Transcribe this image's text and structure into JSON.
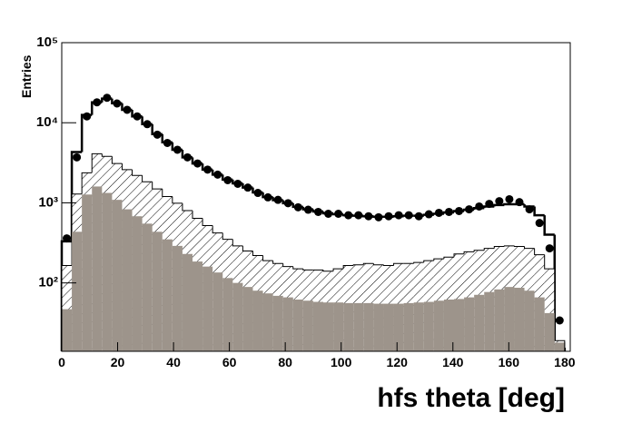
{
  "chart_data": {
    "type": "histogram",
    "xlabel": "hfs theta [deg]",
    "ylabel": "Entries",
    "ylog": true,
    "xlim": [
      0,
      182
    ],
    "ylim": [
      14,
      100000
    ],
    "xticks": [
      0,
      20,
      40,
      60,
      80,
      100,
      120,
      140,
      160,
      180
    ],
    "yticks": [
      {
        "value": 100,
        "label": "10²"
      },
      {
        "value": 1000,
        "label": "10³"
      },
      {
        "value": 10000,
        "label": "10⁴"
      },
      {
        "value": 100000,
        "label": "10⁵"
      }
    ],
    "bins": [
      0,
      3.6,
      7.2,
      10.8,
      14.4,
      18,
      21.6,
      25.2,
      28.8,
      32.4,
      36,
      39.6,
      43.2,
      46.8,
      50.4,
      54,
      57.6,
      61.2,
      64.8,
      68.4,
      72,
      75.6,
      79.2,
      82.8,
      86.4,
      90,
      93.6,
      97.2,
      100.8,
      104.4,
      108,
      111.6,
      115.2,
      118.8,
      122.4,
      126,
      129.6,
      133.2,
      136.8,
      140.4,
      144,
      147.6,
      151.2,
      154.8,
      158.4,
      162,
      165.6,
      169.2,
      172.8,
      176.4,
      180
    ],
    "series": [
      {
        "style": "line",
        "color": "#000000",
        "values": [
          330,
          4300,
          12500,
          18000,
          20000,
          17500,
          14500,
          12000,
          9600,
          7200,
          5700,
          4600,
          3700,
          3100,
          2600,
          2250,
          1950,
          1750,
          1550,
          1350,
          1180,
          1080,
          990,
          890,
          830,
          780,
          740,
          720,
          700,
          690,
          680,
          670,
          670,
          680,
          690,
          690,
          710,
          730,
          760,
          790,
          820,
          860,
          900,
          940,
          960,
          960,
          900,
          700,
          400,
          15
        ]
      },
      {
        "style": "hatched",
        "color": "#000000",
        "values": [
          165,
          1290,
          2370,
          4100,
          3800,
          3100,
          2600,
          2200,
          1830,
          1490,
          1200,
          990,
          800,
          640,
          520,
          420,
          350,
          290,
          250,
          220,
          190,
          175,
          160,
          150,
          145,
          145,
          140,
          150,
          165,
          168,
          175,
          168,
          165,
          175,
          175,
          180,
          190,
          200,
          210,
          230,
          245,
          255,
          270,
          285,
          290,
          285,
          270,
          225,
          150,
          19
        ]
      },
      {
        "style": "filled",
        "color": "#9d948b",
        "values": [
          47,
          435,
          1270,
          1600,
          1330,
          1090,
          830,
          680,
          550,
          435,
          350,
          290,
          230,
          185,
          160,
          135,
          115,
          100,
          89,
          80,
          74,
          69,
          66,
          62,
          60,
          58,
          57,
          57,
          56,
          56,
          56,
          55,
          55,
          55,
          56,
          57,
          58,
          60,
          62,
          63,
          66,
          71,
          77,
          83,
          89,
          87,
          80,
          66,
          42,
          18
        ]
      },
      {
        "style": "points",
        "color": "#000000",
        "values": [
          360,
          3700,
          12000,
          18000,
          20500,
          17400,
          14500,
          12000,
          9600,
          7100,
          5600,
          4600,
          3700,
          3100,
          2600,
          2250,
          1920,
          1730,
          1550,
          1330,
          1170,
          1090,
          990,
          880,
          820,
          770,
          730,
          730,
          700,
          700,
          680,
          660,
          680,
          700,
          700,
          680,
          720,
          750,
          770,
          790,
          830,
          900,
          970,
          1050,
          1110,
          1020,
          830,
          560,
          270,
          34
        ]
      }
    ]
  }
}
